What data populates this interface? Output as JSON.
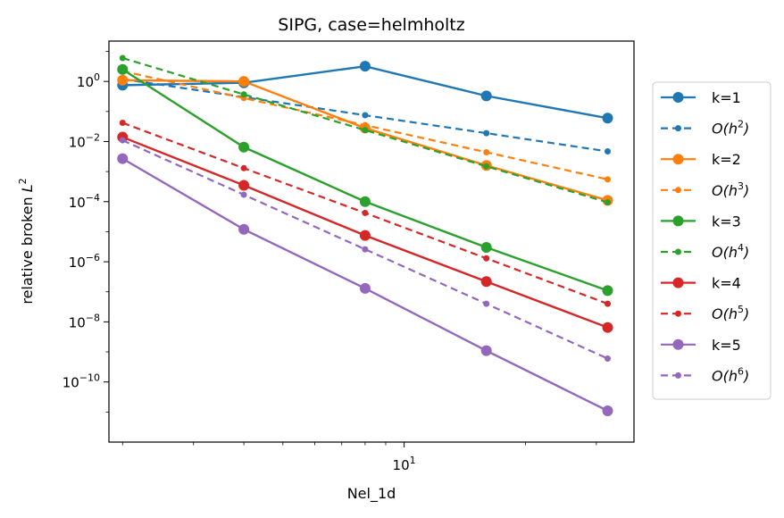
{
  "chart_data": {
    "type": "line",
    "title": "SIPG, case=helmholtz",
    "xlabel": "Nel_1d",
    "ylabel_prefix": "relative broken ",
    "ylabel_symbol": "L",
    "ylabel_sup": "2",
    "x_scale": "log",
    "y_scale": "log",
    "xlim": [
      1.85,
      37.2
    ],
    "ylim": [
      1e-12,
      22.0
    ],
    "x_ticks": [
      {
        "value": 10,
        "base": "10",
        "exp": "1"
      }
    ],
    "y_ticks": [
      {
        "value": 1,
        "base": "10",
        "exp": "0"
      },
      {
        "value": 0.01,
        "base": "10",
        "exp": "−2"
      },
      {
        "value": 0.0001,
        "base": "10",
        "exp": "−4"
      },
      {
        "value": 1e-06,
        "base": "10",
        "exp": "−6"
      },
      {
        "value": 1e-08,
        "base": "10",
        "exp": "−8"
      },
      {
        "value": 1e-10,
        "base": "10",
        "exp": "−10"
      }
    ],
    "legend_position": "outside-right",
    "x": [
      2,
      4,
      8,
      16,
      32
    ],
    "series": [
      {
        "name": "k=1",
        "style": "solid",
        "color": "#1f77b4",
        "values": [
          0.75,
          0.9,
          3.2,
          0.33,
          0.06
        ]
      },
      {
        "name": "O(h^2)",
        "label_base": "O(h",
        "label_sup": "2",
        "label_end": ")",
        "style": "dashed",
        "color": "#1f77b4",
        "values": [
          1.2,
          0.3,
          0.075,
          0.019,
          0.0047
        ]
      },
      {
        "name": "k=2",
        "style": "solid",
        "color": "#ff7f0e",
        "values": [
          1.1,
          1.0,
          0.028,
          0.0016,
          0.00011
        ]
      },
      {
        "name": "O(h^3)",
        "label_base": "O(h",
        "label_sup": "3",
        "label_end": ")",
        "style": "dashed",
        "color": "#ff7f0e",
        "values": [
          2.2,
          0.28,
          0.035,
          0.0044,
          0.00055
        ]
      },
      {
        "name": "k=3",
        "style": "solid",
        "color": "#2ca02c",
        "values": [
          2.5,
          0.0065,
          0.0001,
          3e-06,
          1.1e-07
        ]
      },
      {
        "name": "O(h^4)",
        "label_base": "O(h",
        "label_sup": "4",
        "label_end": ")",
        "style": "dashed",
        "color": "#2ca02c",
        "values": [
          6.0,
          0.37,
          0.024,
          0.0015,
          9.5e-05
        ]
      },
      {
        "name": "k=4",
        "style": "solid",
        "color": "#d62728",
        "values": [
          0.014,
          0.00035,
          7.5e-06,
          2.2e-07,
          6.5e-09
        ]
      },
      {
        "name": "O(h^5)",
        "label_base": "O(h",
        "label_sup": "5",
        "label_end": ")",
        "style": "dashed",
        "color": "#d62728",
        "values": [
          0.042,
          0.0013,
          4.2e-05,
          1.3e-06,
          4e-08
        ]
      },
      {
        "name": "k=5",
        "style": "solid",
        "color": "#9467bd",
        "values": [
          0.0027,
          1.2e-05,
          1.3e-07,
          1.1e-09,
          1.1e-11
        ]
      },
      {
        "name": "O(h^6)",
        "label_base": "O(h",
        "label_sup": "6",
        "label_end": ")",
        "style": "dashed",
        "color": "#9467bd",
        "values": [
          0.011,
          0.00017,
          2.6e-06,
          4e-08,
          6e-10
        ]
      }
    ]
  }
}
